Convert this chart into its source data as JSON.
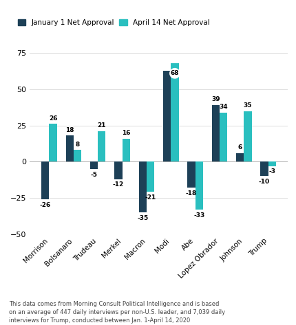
{
  "leaders": [
    "Morrison",
    "Bolsanaro",
    "Trudeau",
    "Merkel",
    "Macron",
    "Modi",
    "Abe",
    "Lopez Obrador",
    "Johnson",
    "Trump"
  ],
  "jan_values": [
    -26,
    18,
    -5,
    -12,
    -35,
    63,
    -18,
    39,
    6,
    -10
  ],
  "apr_values": [
    26,
    8,
    21,
    16,
    -21,
    68,
    -33,
    34,
    35,
    -3
  ],
  "jan_color": "#1d4057",
  "apr_color": "#2abfbf",
  "bar_width": 0.32,
  "ylim": [
    -50,
    78
  ],
  "yticks": [
    -50,
    -25,
    0,
    25,
    50,
    75
  ],
  "footnote": "This data comes from Morning Consult Political Intelligence and is based\non an average of 447 daily interviews per non-U.S. leader, and 7,039 daily\ninterviews for Trump, conducted between Jan. 1-April 14, 2020",
  "legend_jan": "January 1 Net Approval",
  "legend_apr": "April 14 Net Approval",
  "modi_index": 5,
  "show_jan_label": [
    true,
    true,
    true,
    true,
    true,
    false,
    true,
    true,
    true,
    true
  ],
  "show_apr_label": [
    true,
    true,
    true,
    true,
    true,
    true,
    true,
    true,
    true,
    true
  ]
}
